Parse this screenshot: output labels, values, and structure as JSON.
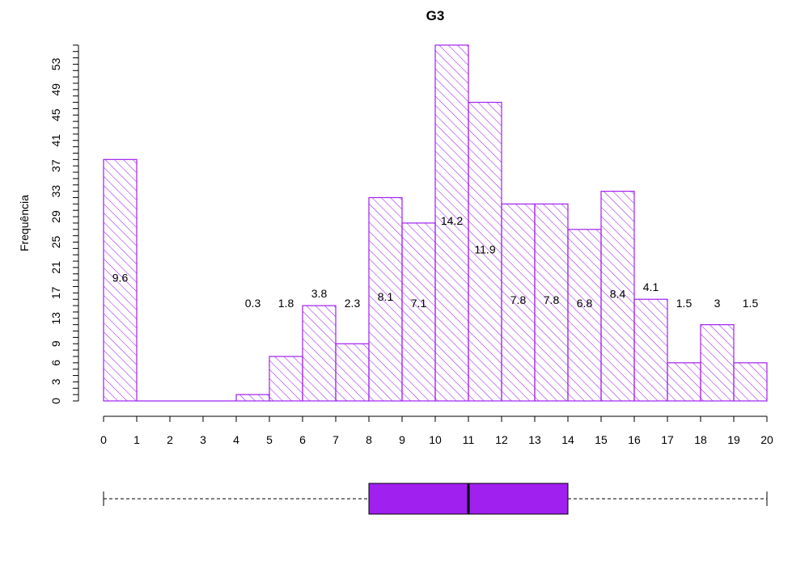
{
  "chart_data": {
    "type": "bar",
    "title": "G3",
    "ylabel": "Frequência",
    "xlabel": "",
    "bins": [
      [
        0,
        1
      ],
      [
        1,
        2
      ],
      [
        2,
        3
      ],
      [
        3,
        4
      ],
      [
        4,
        5
      ],
      [
        5,
        6
      ],
      [
        6,
        7
      ],
      [
        7,
        8
      ],
      [
        8,
        9
      ],
      [
        9,
        10
      ],
      [
        10,
        11
      ],
      [
        11,
        12
      ],
      [
        12,
        13
      ],
      [
        13,
        14
      ],
      [
        14,
        15
      ],
      [
        15,
        16
      ],
      [
        16,
        17
      ],
      [
        17,
        18
      ],
      [
        18,
        19
      ],
      [
        19,
        20
      ]
    ],
    "values": [
      38,
      0,
      0,
      0,
      1,
      7,
      15,
      9,
      32,
      28,
      56,
      47,
      31,
      31,
      27,
      33,
      16,
      6,
      12,
      6
    ],
    "percent_labels": [
      "9.6",
      "",
      "",
      "",
      "0.3",
      "1.8",
      "3.8",
      "2.3",
      "8.1",
      "7.1",
      "14.2",
      "11.9",
      "7.8",
      "7.8",
      "6.8",
      "8.4",
      "4.1",
      "1.5",
      "3",
      "1.5"
    ],
    "x_ticks": [
      0,
      1,
      2,
      3,
      4,
      5,
      6,
      7,
      8,
      9,
      10,
      11,
      12,
      13,
      14,
      15,
      16,
      17,
      18,
      19,
      20
    ],
    "y_tick_labels": [
      0,
      3,
      6,
      9,
      13,
      17,
      21,
      25,
      29,
      33,
      37,
      41,
      45,
      49,
      53
    ],
    "ylim": [
      0,
      56
    ],
    "xlim": [
      0,
      20
    ],
    "bar_color": "#A020F0",
    "boxplot": {
      "min": 0,
      "q1": 8,
      "median": 11,
      "q3": 14,
      "max": 20,
      "fill": "#A020F0"
    }
  }
}
